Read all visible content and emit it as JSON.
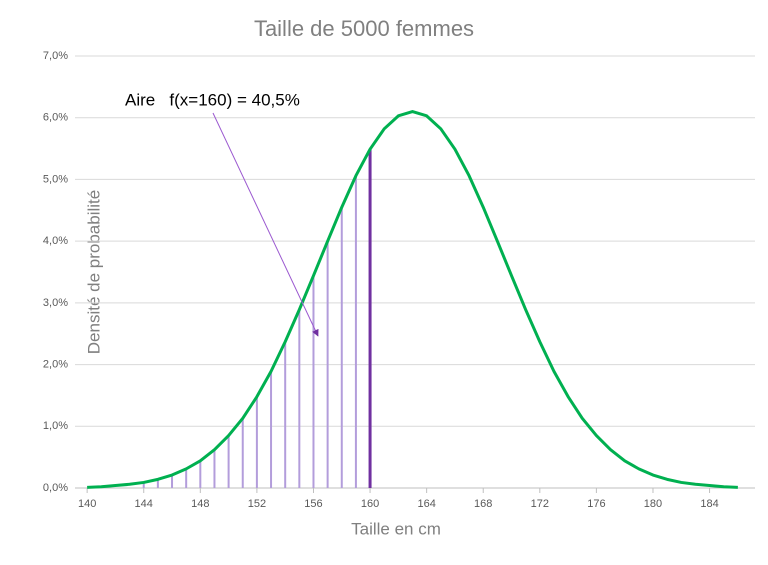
{
  "chart_data": {
    "type": "line",
    "title": "Taille de 5000 femmes",
    "x_label": "Taille en cm",
    "y_label": "Densité de probabilité",
    "annotation": "Aire   f(x=160) = 40,5%",
    "x": [
      140,
      141,
      142,
      143,
      144,
      145,
      146,
      147,
      148,
      149,
      150,
      151,
      152,
      153,
      154,
      155,
      156,
      157,
      158,
      159,
      160,
      161,
      162,
      163,
      164,
      165,
      166,
      167,
      168,
      169,
      170,
      171,
      172,
      173,
      174,
      175,
      176,
      177,
      178,
      179,
      180,
      181,
      182,
      183,
      184,
      185,
      186
    ],
    "series": [
      {
        "color": "#00b050",
        "values": [
          0.01,
          0.02,
          0.04,
          0.06,
          0.09,
          0.14,
          0.21,
          0.31,
          0.44,
          0.62,
          0.85,
          1.13,
          1.48,
          1.89,
          2.37,
          2.89,
          3.44,
          4.0,
          4.55,
          5.06,
          5.49,
          5.82,
          6.03,
          6.1,
          6.03,
          5.82,
          5.49,
          5.06,
          4.55,
          4.0,
          3.44,
          2.89,
          2.37,
          1.89,
          1.48,
          1.13,
          0.85,
          0.62,
          0.44,
          0.31,
          0.21,
          0.14,
          0.09,
          0.06,
          0.04,
          0.02,
          0.01
        ]
      }
    ],
    "shade_from": 144,
    "shade_to": 160,
    "shade_color": "#b39ddb",
    "edge_color": "#7030a0",
    "xlim": [
      139,
      187
    ],
    "xticks": [
      140,
      144,
      148,
      152,
      156,
      160,
      164,
      168,
      172,
      176,
      180,
      184
    ],
    "ylim": [
      0,
      7
    ],
    "yticks": [
      {
        "value": 0,
        "label": "0,0%"
      },
      {
        "value": 1,
        "label": "1,0%"
      },
      {
        "value": 2,
        "label": "2,0%"
      },
      {
        "value": 3,
        "label": "3,0%"
      },
      {
        "value": 4,
        "label": "4,0%"
      },
      {
        "value": 5,
        "label": "5,0%"
      },
      {
        "value": 6,
        "label": "6,0%"
      },
      {
        "value": 7,
        "label": "7,0%"
      }
    ],
    "grid": true
  }
}
